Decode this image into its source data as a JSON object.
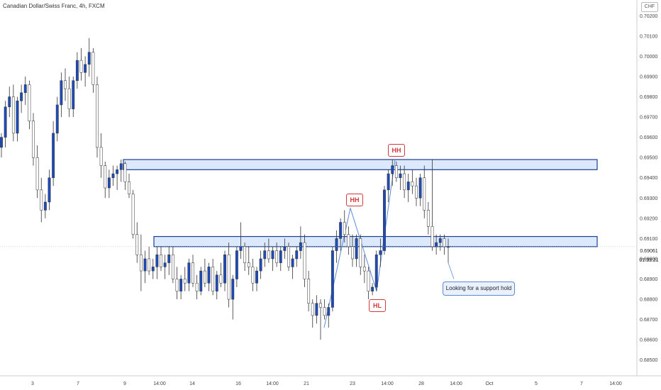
{
  "header": {
    "title": "Canadian Dollar/Swiss Franc, 4h, FXCM",
    "currency": "CHF"
  },
  "price_axis": {
    "ticks": [
      "0.70200",
      "0.70100",
      "0.70000",
      "0.69900",
      "0.69800",
      "0.69700",
      "0.69600",
      "0.69500",
      "0.69400",
      "0.69300",
      "0.69200",
      "0.69100",
      "0.69000",
      "0.68900",
      "0.68800",
      "0.68700",
      "0.68600",
      "0.68500"
    ],
    "last_price": "0.69061",
    "countdown": "01:33:21"
  },
  "time_axis": {
    "labels": [
      "3",
      "7",
      "9",
      "14:00",
      "14",
      "16",
      "14:00",
      "21",
      "23",
      "14:00",
      "28",
      "14:00",
      "Oct",
      "5",
      "7",
      "14:00"
    ]
  },
  "annotations": {
    "note": "Looking for a support hold",
    "labels": [
      "HH",
      "HH",
      "HL"
    ]
  },
  "colors": {
    "bull": "#1e4bb8",
    "bear": "#ffffff",
    "wick": "#333333",
    "zone_fill": "#dce8fb",
    "zone_border": "#1a3f8f",
    "label": "#d03a3a"
  },
  "chart_data": {
    "type": "candlestick",
    "title": "Canadian Dollar/Swiss Franc, 4h, FXCM",
    "ylim": [
      0.6845,
      0.7025
    ],
    "price_scale": "linear",
    "zones": [
      {
        "name": "resistance",
        "top": 0.6949,
        "bottom": 0.6944
      },
      {
        "name": "support",
        "top": 0.6911,
        "bottom": 0.6906
      }
    ],
    "candles": [
      [
        0.6955,
        0.6962,
        0.695,
        0.696
      ],
      [
        0.696,
        0.6978,
        0.6955,
        0.6975
      ],
      [
        0.6975,
        0.6985,
        0.697,
        0.698
      ],
      [
        0.698,
        0.6986,
        0.6958,
        0.6962
      ],
      [
        0.6962,
        0.698,
        0.6958,
        0.6978
      ],
      [
        0.6978,
        0.6986,
        0.6972,
        0.6982
      ],
      [
        0.6982,
        0.699,
        0.6976,
        0.6986
      ],
      [
        0.6986,
        0.6988,
        0.6964,
        0.6968
      ],
      [
        0.6968,
        0.6972,
        0.6946,
        0.695
      ],
      [
        0.695,
        0.6956,
        0.693,
        0.6934
      ],
      [
        0.6934,
        0.694,
        0.6918,
        0.6924
      ],
      [
        0.6924,
        0.6932,
        0.692,
        0.6928
      ],
      [
        0.6928,
        0.6944,
        0.6924,
        0.694
      ],
      [
        0.694,
        0.6968,
        0.6936,
        0.6962
      ],
      [
        0.6962,
        0.698,
        0.6958,
        0.6976
      ],
      [
        0.6976,
        0.6992,
        0.697,
        0.6988
      ],
      [
        0.6988,
        0.6994,
        0.6978,
        0.6984
      ],
      [
        0.6984,
        0.699,
        0.697,
        0.6974
      ],
      [
        0.6974,
        0.699,
        0.697,
        0.6988
      ],
      [
        0.6988,
        0.7002,
        0.6984,
        0.6998
      ],
      [
        0.6998,
        0.7004,
        0.6988,
        0.6992
      ],
      [
        0.6992,
        0.7,
        0.6985,
        0.6996
      ],
      [
        0.6996,
        0.7009,
        0.699,
        0.7002
      ],
      [
        0.7002,
        0.7004,
        0.6982,
        0.6986
      ],
      [
        0.6986,
        0.699,
        0.695,
        0.6955
      ],
      [
        0.6955,
        0.6962,
        0.694,
        0.6946
      ],
      [
        0.6946,
        0.6948,
        0.693,
        0.6935
      ],
      [
        0.6935,
        0.6944,
        0.693,
        0.694
      ],
      [
        0.694,
        0.6946,
        0.6936,
        0.6942
      ],
      [
        0.6942,
        0.6946,
        0.6934,
        0.6944
      ],
      [
        0.6944,
        0.6949,
        0.6938,
        0.6947
      ],
      [
        0.6947,
        0.6948,
        0.6934,
        0.6938
      ],
      [
        0.6938,
        0.6942,
        0.693,
        0.6932
      ],
      [
        0.6932,
        0.6934,
        0.691,
        0.6912
      ],
      [
        0.6912,
        0.6918,
        0.6898,
        0.6902
      ],
      [
        0.6902,
        0.6912,
        0.6884,
        0.6894
      ],
      [
        0.6894,
        0.6904,
        0.6888,
        0.69
      ],
      [
        0.69,
        0.6906,
        0.6892,
        0.6894
      ],
      [
        0.6894,
        0.69,
        0.689,
        0.6896
      ],
      [
        0.6896,
        0.6906,
        0.689,
        0.6902
      ],
      [
        0.6902,
        0.6906,
        0.6894,
        0.6896
      ],
      [
        0.6896,
        0.6902,
        0.689,
        0.6898
      ],
      [
        0.6898,
        0.6906,
        0.6892,
        0.6902
      ],
      [
        0.6902,
        0.6906,
        0.6888,
        0.689
      ],
      [
        0.689,
        0.6896,
        0.688,
        0.6884
      ],
      [
        0.6884,
        0.6892,
        0.688,
        0.689
      ],
      [
        0.689,
        0.6896,
        0.6884,
        0.6888
      ],
      [
        0.6888,
        0.69,
        0.6884,
        0.6898
      ],
      [
        0.6898,
        0.6902,
        0.6886,
        0.6888
      ],
      [
        0.6888,
        0.6892,
        0.688,
        0.6884
      ],
      [
        0.6884,
        0.6896,
        0.6882,
        0.6894
      ],
      [
        0.6894,
        0.69,
        0.6886,
        0.6888
      ],
      [
        0.6888,
        0.6898,
        0.6884,
        0.6896
      ],
      [
        0.6896,
        0.69,
        0.6882,
        0.6884
      ],
      [
        0.6884,
        0.6894,
        0.688,
        0.6892
      ],
      [
        0.6892,
        0.6898,
        0.6886,
        0.6888
      ],
      [
        0.6888,
        0.6904,
        0.6884,
        0.6902
      ],
      [
        0.6902,
        0.6908,
        0.6876,
        0.688
      ],
      [
        0.688,
        0.6892,
        0.687,
        0.689
      ],
      [
        0.689,
        0.6906,
        0.6886,
        0.6904
      ],
      [
        0.6904,
        0.6918,
        0.69,
        0.6906
      ],
      [
        0.6906,
        0.6908,
        0.6894,
        0.6898
      ],
      [
        0.6898,
        0.6906,
        0.6892,
        0.6896
      ],
      [
        0.6896,
        0.69,
        0.6884,
        0.6888
      ],
      [
        0.6888,
        0.6896,
        0.6884,
        0.6894
      ],
      [
        0.6894,
        0.6904,
        0.689,
        0.69
      ],
      [
        0.69,
        0.6908,
        0.6896,
        0.6904
      ],
      [
        0.6904,
        0.691,
        0.6898,
        0.69
      ],
      [
        0.69,
        0.6906,
        0.6894,
        0.6904
      ],
      [
        0.6904,
        0.6908,
        0.6896,
        0.6898
      ],
      [
        0.6898,
        0.6906,
        0.6894,
        0.6904
      ],
      [
        0.6904,
        0.691,
        0.69,
        0.6906
      ],
      [
        0.6906,
        0.6908,
        0.6894,
        0.6896
      ],
      [
        0.6896,
        0.6902,
        0.689,
        0.69
      ],
      [
        0.69,
        0.6906,
        0.6896,
        0.6904
      ],
      [
        0.6904,
        0.6916,
        0.69,
        0.6908
      ],
      [
        0.6908,
        0.6912,
        0.6886,
        0.689
      ],
      [
        0.689,
        0.6894,
        0.6874,
        0.6878
      ],
      [
        0.6878,
        0.688,
        0.6866,
        0.6872
      ],
      [
        0.6872,
        0.6882,
        0.6868,
        0.6878
      ],
      [
        0.6878,
        0.688,
        0.686,
        0.6876
      ],
      [
        0.6876,
        0.688,
        0.687,
        0.6872
      ],
      [
        0.6872,
        0.6878,
        0.6866,
        0.6876
      ],
      [
        0.6876,
        0.6906,
        0.6874,
        0.6904
      ],
      [
        0.6904,
        0.6914,
        0.6898,
        0.691
      ],
      [
        0.691,
        0.692,
        0.6904,
        0.6918
      ],
      [
        0.6918,
        0.6924,
        0.6908,
        0.6912
      ],
      [
        0.6912,
        0.6916,
        0.6902,
        0.6906
      ],
      [
        0.6906,
        0.6912,
        0.6896,
        0.69
      ],
      [
        0.69,
        0.6912,
        0.6896,
        0.691
      ],
      [
        0.691,
        0.6912,
        0.6892,
        0.6896
      ],
      [
        0.6896,
        0.6902,
        0.6888,
        0.6894
      ],
      [
        0.6894,
        0.6896,
        0.688,
        0.6884
      ],
      [
        0.6884,
        0.6888,
        0.6882,
        0.6886
      ],
      [
        0.6886,
        0.6904,
        0.6884,
        0.6902
      ],
      [
        0.6902,
        0.691,
        0.6896,
        0.6904
      ],
      [
        0.6904,
        0.6936,
        0.6902,
        0.6934
      ],
      [
        0.6934,
        0.6944,
        0.6928,
        0.6942
      ],
      [
        0.6942,
        0.6949,
        0.6936,
        0.6946
      ],
      [
        0.6946,
        0.6948,
        0.6938,
        0.694
      ],
      [
        0.694,
        0.6946,
        0.6934,
        0.6942
      ],
      [
        0.6942,
        0.6946,
        0.693,
        0.6934
      ],
      [
        0.6934,
        0.6942,
        0.6928,
        0.6938
      ],
      [
        0.6938,
        0.6944,
        0.6932,
        0.6936
      ],
      [
        0.6936,
        0.694,
        0.6926,
        0.693
      ],
      [
        0.693,
        0.6942,
        0.6926,
        0.694
      ],
      [
        0.694,
        0.6946,
        0.692,
        0.6924
      ],
      [
        0.6924,
        0.6928,
        0.6912,
        0.6916
      ],
      [
        0.6916,
        0.6949,
        0.6904,
        0.6906
      ],
      [
        0.6906,
        0.6912,
        0.6902,
        0.6908
      ],
      [
        0.6908,
        0.6912,
        0.6904,
        0.691
      ],
      [
        0.691,
        0.6912,
        0.6902,
        0.6906
      ],
      [
        0.6906,
        0.691,
        0.6898,
        0.6906
      ]
    ]
  }
}
